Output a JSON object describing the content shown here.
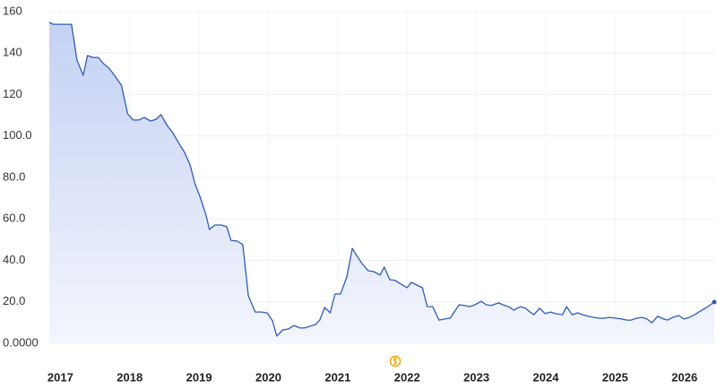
{
  "chart_data": {
    "type": "area",
    "x": [
      2016.84,
      2016.9,
      2017.16,
      2017.24,
      2017.33,
      2017.39,
      2017.47,
      2017.55,
      2017.62,
      2017.7,
      2017.78,
      2017.88,
      2017.97,
      2018.05,
      2018.13,
      2018.21,
      2018.3,
      2018.38,
      2018.45,
      2018.54,
      2018.62,
      2018.71,
      2018.79,
      2018.87,
      2018.94,
      2019.02,
      2019.1,
      2019.15,
      2019.23,
      2019.32,
      2019.4,
      2019.46,
      2019.55,
      2019.63,
      2019.71,
      2019.81,
      2019.9,
      2019.98,
      2020.06,
      2020.12,
      2020.21,
      2020.29,
      2020.37,
      2020.45,
      2020.52,
      2020.6,
      2020.68,
      2020.74,
      2020.81,
      2020.89,
      2020.96,
      2021.04,
      2021.13,
      2021.21,
      2021.27,
      2021.35,
      2021.44,
      2021.52,
      2021.61,
      2021.67,
      2021.75,
      2021.83,
      2021.89,
      2022.0,
      2022.06,
      2022.14,
      2022.22,
      2022.29,
      2022.37,
      2022.46,
      2022.54,
      2022.62,
      2022.75,
      2022.83,
      2022.9,
      2022.98,
      2023.07,
      2023.14,
      2023.21,
      2023.32,
      2023.38,
      2023.46,
      2023.54,
      2023.63,
      2023.71,
      2023.77,
      2023.83,
      2023.91,
      2023.99,
      2024.07,
      2024.14,
      2024.24,
      2024.3,
      2024.38,
      2024.46,
      2024.53,
      2024.61,
      2024.69,
      2024.77,
      2024.84,
      2024.92,
      2025.01,
      2025.09,
      2025.17,
      2025.23,
      2025.31,
      2025.39,
      2025.46,
      2025.53,
      2025.61,
      2025.7,
      2025.76,
      2025.83,
      2025.92,
      2025.99,
      2026.07,
      2026.15,
      2026.23,
      2026.32,
      2026.43
    ],
    "values": [
      154.8,
      153.9,
      153.9,
      136.6,
      129.3,
      138.8,
      137.9,
      137.9,
      134.9,
      132.8,
      129.3,
      124.5,
      110.7,
      107.7,
      107.7,
      109.0,
      107.2,
      108.1,
      110.3,
      105.1,
      101.6,
      96.4,
      92.1,
      86.1,
      77.0,
      70.1,
      61.8,
      54.9,
      57.1,
      57.1,
      56.2,
      49.7,
      49.3,
      47.6,
      22.9,
      15.1,
      15.1,
      14.7,
      10.8,
      3.5,
      6.5,
      6.9,
      8.6,
      7.4,
      7.4,
      8.2,
      9.1,
      11.2,
      17.3,
      14.7,
      23.8,
      23.8,
      32.0,
      45.8,
      42.4,
      38.5,
      35.0,
      34.6,
      32.9,
      36.8,
      30.7,
      30.3,
      29.0,
      26.8,
      29.4,
      28.1,
      26.8,
      17.7,
      17.7,
      11.2,
      11.7,
      12.1,
      18.6,
      18.2,
      17.7,
      18.6,
      20.3,
      18.6,
      18.2,
      19.5,
      18.6,
      17.7,
      16.0,
      17.7,
      16.9,
      15.1,
      13.8,
      16.9,
      14.3,
      15.1,
      14.3,
      13.8,
      17.7,
      13.8,
      14.7,
      13.8,
      13.0,
      12.5,
      12.1,
      12.1,
      12.5,
      12.1,
      11.7,
      11.2,
      11.2,
      12.1,
      12.5,
      11.7,
      9.9,
      13.0,
      11.7,
      11.2,
      12.5,
      13.4,
      11.7,
      12.5,
      13.8,
      15.6,
      17.3,
      19.9
    ],
    "color": "#2f5bb7",
    "xlim": [
      2016.84,
      2026.43
    ],
    "xticks": [
      2017,
      2018,
      2019,
      2020,
      2021,
      2022,
      2023,
      2024,
      2025,
      2026
    ],
    "ylim": [
      0,
      160
    ],
    "yticks": [
      {
        "value": 0,
        "label": "0.0000"
      },
      {
        "value": 20,
        "label": "20.0"
      },
      {
        "value": 40,
        "label": "40.0"
      },
      {
        "value": 60,
        "label": "60.0"
      },
      {
        "value": 80,
        "label": "80.0"
      },
      {
        "value": 100,
        "label": "100.0"
      },
      120,
      140,
      160
    ],
    "grid": true
  }
}
